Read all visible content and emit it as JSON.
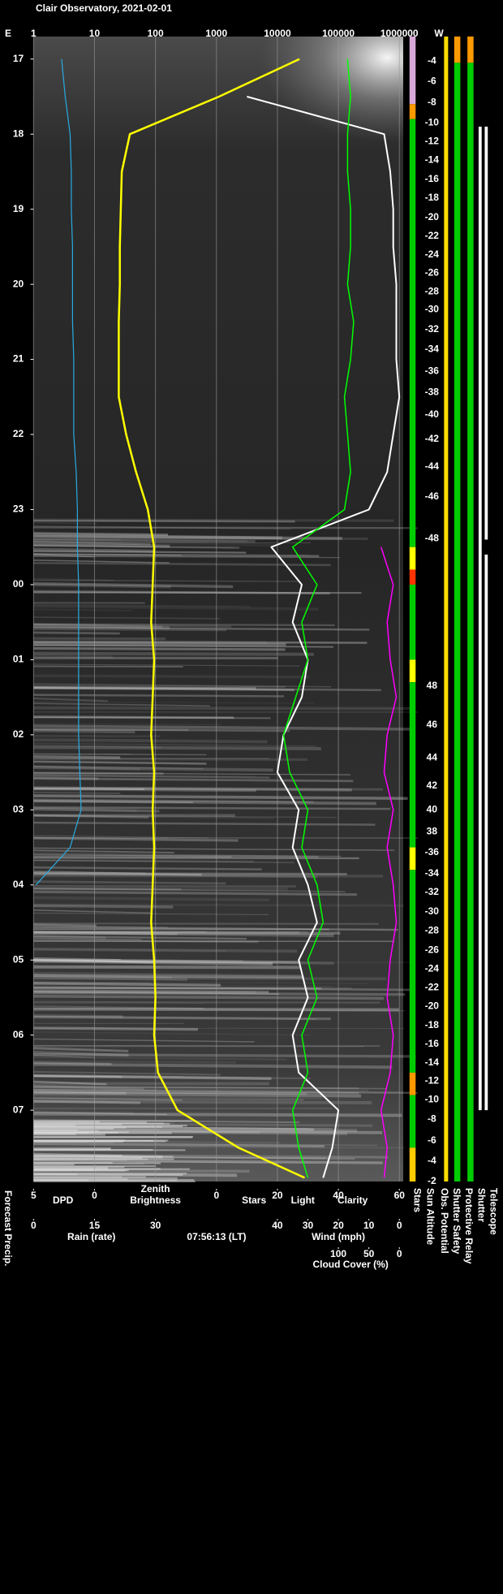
{
  "chart_data": {
    "type": "line",
    "title": "Clair Observatory, 2021-02-01",
    "east_label": "E",
    "west_label": "W",
    "time_label": "07:56:13 (LT)",
    "left_label": "Forecast Precip.",
    "ylim": [
      16.7,
      31.95
    ],
    "yticks": [
      17,
      18,
      19,
      20,
      21,
      22,
      23,
      {
        "value": 24,
        "label": "00"
      },
      {
        "value": 25,
        "label": "01"
      },
      {
        "value": 26,
        "label": "02"
      },
      {
        "value": 27,
        "label": "03"
      },
      {
        "value": 28,
        "label": "04"
      },
      {
        "value": 29,
        "label": "05"
      },
      {
        "value": 30,
        "label": "06"
      },
      {
        "value": 31,
        "label": "07"
      }
    ],
    "grid": true,
    "axes": {
      "top": {
        "lim": [
          1,
          1000000
        ],
        "ticks": [
          1,
          10,
          100,
          1000,
          10000,
          100000,
          1000000
        ],
        "log": true,
        "label": [
          "Zenith",
          "Brightness"
        ],
        "color": "#ffff00"
      },
      "dpd": {
        "lim": [
          5,
          0
        ],
        "ticks": [
          5,
          0
        ],
        "label": "DPD",
        "color": "#29abe2"
      },
      "stars": {
        "lim": [
          0,
          60
        ],
        "ticks": [
          0,
          20,
          40,
          60
        ],
        "labels": [
          {
            "text": "Stars",
            "color": "#ffffff"
          },
          {
            "text": "Light",
            "color": "#ffff00"
          },
          {
            "text": "Clarity",
            "color": "#00ff00"
          }
        ]
      },
      "rain": {
        "lim": [
          0,
          30
        ],
        "ticks": [
          0,
          15,
          30
        ],
        "label": "Rain (rate)",
        "color": "#29abe2"
      },
      "wind": {
        "lim": [
          40,
          0
        ],
        "ticks": [
          40,
          30,
          20,
          10,
          0
        ],
        "label": "Wind (mph)",
        "color": "#ff99cc"
      },
      "cloud": {
        "lim": [
          100,
          0
        ],
        "ticks": [
          100,
          50,
          0
        ],
        "label": "Cloud Cover (%)",
        "color": "#ff00ff"
      }
    },
    "times": [
      17,
      17.5,
      18,
      18.5,
      19,
      19.5,
      20,
      20.5,
      21,
      21.5,
      22,
      22.5,
      23,
      23.5,
      24,
      24.5,
      25,
      25.5,
      26,
      26.5,
      27,
      27.5,
      28,
      28.5,
      29,
      29.5,
      30,
      30.5,
      31,
      31.5,
      31.9
    ],
    "series": [
      {
        "name": "Zenith Brightness",
        "axis": "top",
        "color": "#ffff00",
        "values": [
          23000,
          1100,
          38,
          28,
          27,
          26,
          26,
          25,
          25,
          25,
          33,
          48,
          75,
          95,
          90,
          85,
          95,
          90,
          85,
          95,
          90,
          95,
          90,
          85,
          95,
          100,
          95,
          110,
          230,
          2300,
          28000
        ]
      },
      {
        "name": "Stars",
        "axis": "stars",
        "color": "#ffffff",
        "values": [
          null,
          10,
          55,
          57,
          58,
          58,
          59,
          59,
          59,
          60,
          58,
          56,
          50,
          18,
          28,
          25,
          30,
          28,
          22,
          20,
          27,
          25,
          30,
          33,
          27,
          30,
          25,
          27,
          40,
          38,
          35
        ]
      },
      {
        "name": "Clarity",
        "axis": "stars",
        "color": "#00ff00",
        "values": [
          43,
          44,
          43,
          43,
          44,
          44,
          43,
          45,
          44,
          42,
          43,
          44,
          42,
          25,
          33,
          28,
          30,
          26,
          22,
          24,
          30,
          28,
          33,
          35,
          30,
          33,
          28,
          30,
          25,
          27,
          30
        ]
      },
      {
        "name": "Cloud Cover (%)",
        "axis": "cloud",
        "color": "#ff00ff",
        "values": [
          null,
          null,
          null,
          null,
          null,
          null,
          null,
          null,
          null,
          null,
          null,
          null,
          null,
          30,
          10,
          20,
          15,
          5,
          20,
          25,
          10,
          20,
          10,
          5,
          15,
          20,
          10,
          15,
          30,
          20,
          25
        ]
      },
      {
        "name": "DPD",
        "axis": "dpd",
        "color": "#29abe2",
        "values": [
          2.7,
          2.4,
          2.0,
          1.9,
          1.9,
          1.8,
          1.8,
          1.8,
          1.7,
          1.7,
          1.7,
          1.5,
          1.4,
          1.4,
          1.3,
          1.3,
          1.3,
          1.3,
          1.3,
          1.2,
          1.1,
          2.0,
          4.8,
          null,
          null,
          null,
          null,
          null,
          null,
          null,
          null
        ]
      }
    ],
    "sun_altitude": {
      "name": "Sun Altitude",
      "times": [
        17.03,
        17.3,
        17.58,
        17.85,
        18.1,
        18.35,
        18.6,
        18.85,
        19.11,
        19.36,
        19.61,
        19.85,
        20.1,
        20.34,
        20.6,
        20.87,
        21.16,
        21.44,
        21.74,
        22.06,
        22.43,
        22.83,
        23.39,
        25.35,
        25.87,
        26.31,
        26.68,
        27.0,
        27.29,
        27.57,
        27.85,
        28.1,
        28.36,
        28.61,
        28.87,
        29.12,
        29.37,
        29.62,
        29.87,
        30.12,
        30.37,
        30.61,
        30.86,
        31.12,
        31.41,
        31.68,
        31.95
      ],
      "values": [
        -4,
        -6,
        -8,
        -10,
        -12,
        -14,
        -16,
        -18,
        -20,
        -22,
        -24,
        -26,
        -28,
        -30,
        -32,
        -34,
        -36,
        -38,
        -40,
        -42,
        -44,
        -46,
        -48,
        48,
        46,
        44,
        42,
        40,
        38,
        -36,
        -34,
        -32,
        -30,
        -28,
        -26,
        -24,
        -22,
        -20,
        -18,
        -16,
        -14,
        -12,
        -10,
        -8,
        -6,
        -4,
        -2
      ]
    },
    "status": [
      {
        "name": "Stars",
        "segments": [
          {
            "from": 16.7,
            "to": 17.6,
            "color": "#d8a8d8"
          },
          {
            "from": 17.6,
            "to": 17.8,
            "color": "#ff9900"
          },
          {
            "from": 17.8,
            "to": 23.5,
            "color": "#00cc00"
          },
          {
            "from": 23.5,
            "to": 23.8,
            "color": "#ffff00"
          },
          {
            "from": 23.8,
            "to": 24.0,
            "color": "#ff3300"
          },
          {
            "from": 24.0,
            "to": 25.0,
            "color": "#00cc00"
          },
          {
            "from": 25.0,
            "to": 25.3,
            "color": "#ffff00"
          },
          {
            "from": 25.3,
            "to": 27.5,
            "color": "#00cc00"
          },
          {
            "from": 27.5,
            "to": 27.8,
            "color": "#ffff00"
          },
          {
            "from": 27.8,
            "to": 30.5,
            "color": "#00cc00"
          },
          {
            "from": 30.5,
            "to": 30.8,
            "color": "#ff9900"
          },
          {
            "from": 30.8,
            "to": 31.5,
            "color": "#00cc00"
          },
          {
            "from": 31.5,
            "to": 31.95,
            "color": "#ffcc00"
          }
        ]
      },
      {
        "name": "Obs. Potential",
        "segments": [
          {
            "from": 16.7,
            "to": 31.95,
            "color": "#ffdd00"
          }
        ]
      },
      {
        "name": "Shutter Safety",
        "segments": [
          {
            "from": 16.7,
            "to": 17.05,
            "color": "#ff9900"
          },
          {
            "from": 17.05,
            "to": 31.95,
            "color": "#00cc00"
          }
        ]
      },
      {
        "name": "Protective Relay",
        "segments": [
          {
            "from": 16.7,
            "to": 17.05,
            "color": "#ff9900"
          },
          {
            "from": 17.05,
            "to": 31.95,
            "color": "#00cc00"
          }
        ]
      },
      {
        "name": "Shutter",
        "segments": [
          {
            "from": 17.9,
            "to": 31.0,
            "color": "#ffffff"
          }
        ]
      },
      {
        "name": "Telescope",
        "segments": [
          {
            "from": 17.9,
            "to": 23.4,
            "color": "#ffffff"
          },
          {
            "from": 23.6,
            "to": 31.0,
            "color": "#ffffff"
          }
        ]
      }
    ]
  }
}
